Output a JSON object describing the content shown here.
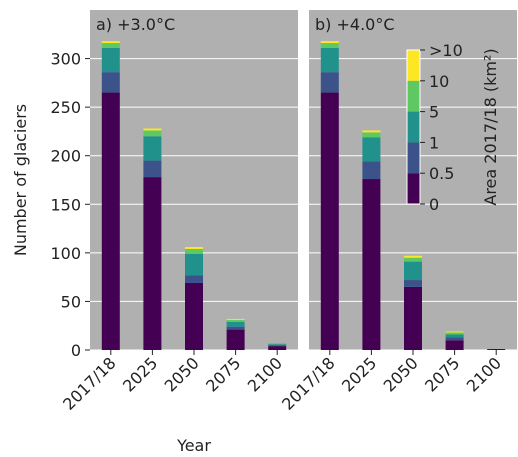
{
  "chart_data": [
    {
      "type": "bar",
      "stacked": true,
      "title": "a) +3.0°C",
      "ylabel": "Number of glaciers",
      "xlabel": "Year",
      "categories": [
        "2017/18",
        "2025",
        "2050",
        "2075",
        "2100"
      ],
      "series": [
        {
          "color": "#440154",
          "values": [
            265,
            178,
            69,
            21,
            4
          ]
        },
        {
          "color": "#3b528b",
          "values": [
            21,
            17,
            8,
            3,
            1
          ]
        },
        {
          "color": "#21918c",
          "values": [
            25,
            25,
            22,
            5,
            1
          ]
        },
        {
          "color": "#5ec962",
          "values": [
            5,
            6,
            5,
            2,
            1
          ]
        },
        {
          "color": "#fde725",
          "values": [
            2,
            2,
            2,
            1,
            0
          ]
        }
      ],
      "ylim": [
        0,
        350
      ],
      "yticks": [
        0,
        50,
        100,
        150,
        200,
        250,
        300
      ],
      "grid": true
    },
    {
      "type": "bar",
      "stacked": true,
      "title": "b) +4.0°C",
      "categories": [
        "2017/18",
        "2025",
        "2050",
        "2075",
        "2100"
      ],
      "series": [
        {
          "color": "#440154",
          "values": [
            265,
            176,
            65,
            10,
            1
          ]
        },
        {
          "color": "#3b528b",
          "values": [
            21,
            18,
            7,
            3,
            0
          ]
        },
        {
          "color": "#21918c",
          "values": [
            25,
            25,
            19,
            3,
            0
          ]
        },
        {
          "color": "#5ec962",
          "values": [
            5,
            5,
            4,
            2,
            0
          ]
        },
        {
          "color": "#fde725",
          "values": [
            2,
            2,
            2,
            1,
            0
          ]
        }
      ],
      "ylim": [
        0,
        350
      ],
      "yticks": [
        0,
        50,
        100,
        150,
        200,
        250,
        300
      ],
      "grid": true
    }
  ],
  "colorbar": {
    "label": "Area 2017/18 (km²)",
    "tick_labels": [
      "0",
      "0.5",
      "1",
      "5",
      "10",
      ">10"
    ]
  }
}
